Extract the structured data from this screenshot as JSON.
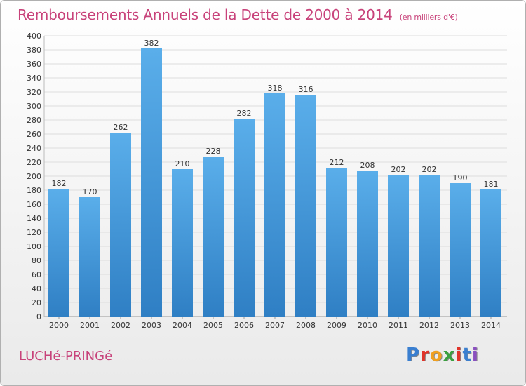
{
  "header": {
    "title": "Remboursements Annuels de la Dette de 2000 à 2014",
    "subtitle": "(en milliers d'€)"
  },
  "footer": {
    "commune": "LUCHé-PRINGé",
    "logo_letters": [
      "P",
      "r",
      "o",
      "x",
      "i",
      "t",
      "i"
    ],
    "logo_colors": [
      "#3a7fd0",
      "#e0342a",
      "#f0a020",
      "#3aa040",
      "#e0342a",
      "#3a7fd0",
      "#8a50c0"
    ]
  },
  "chart_data": {
    "type": "bar",
    "categories": [
      "2000",
      "2001",
      "2002",
      "2003",
      "2004",
      "2005",
      "2006",
      "2007",
      "2008",
      "2009",
      "2010",
      "2011",
      "2012",
      "2013",
      "2014"
    ],
    "values": [
      182,
      170,
      262,
      382,
      210,
      228,
      282,
      318,
      316,
      212,
      208,
      202,
      202,
      190,
      181
    ],
    "ylim": [
      0,
      400
    ],
    "ytick_step": 20,
    "grid": true,
    "bar_color_top": "#5aaeea",
    "bar_color_bottom": "#2f7fc4"
  }
}
